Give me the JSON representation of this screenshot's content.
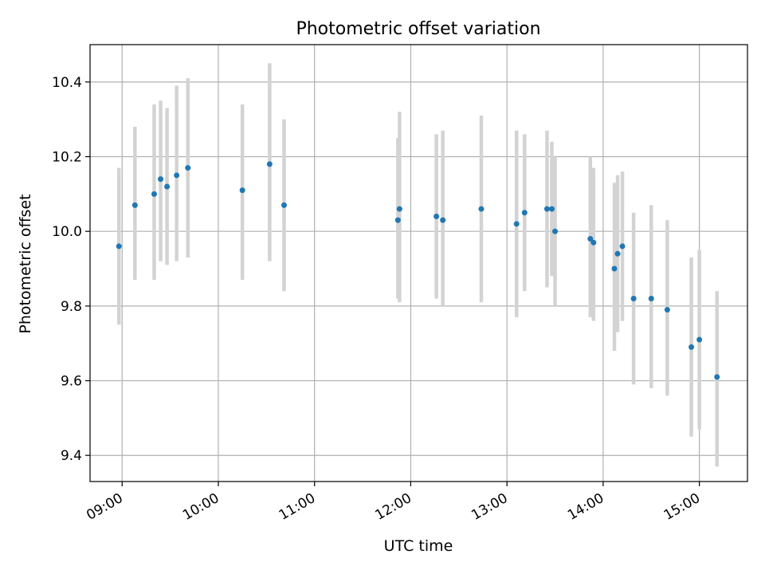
{
  "chart_data": {
    "type": "scatter",
    "title": "Photometric offset variation",
    "xlabel": "UTC time",
    "ylabel": "Photometric offset",
    "xlim": [
      "08:40",
      "15:30"
    ],
    "ylim": [
      9.33,
      10.5
    ],
    "xticks": [
      "09:00",
      "10:00",
      "11:00",
      "12:00",
      "13:00",
      "14:00",
      "15:00"
    ],
    "yticks": [
      "9.4",
      "9.6",
      "9.8",
      "10.0",
      "10.2",
      "10.4"
    ],
    "grid": true,
    "colors": {
      "point": "#1f77b4",
      "errorbar": "#d3d3d3",
      "grid": "#b0b0b0"
    },
    "series": [
      {
        "points": [
          {
            "x": "08:58",
            "y": 9.96,
            "lo": 9.75,
            "hi": 10.17
          },
          {
            "x": "09:08",
            "y": 10.07,
            "lo": 9.87,
            "hi": 10.28
          },
          {
            "x": "09:20",
            "y": 10.1,
            "lo": 9.87,
            "hi": 10.34
          },
          {
            "x": "09:24",
            "y": 10.14,
            "lo": 9.92,
            "hi": 10.35
          },
          {
            "x": "09:28",
            "y": 10.12,
            "lo": 9.91,
            "hi": 10.33
          },
          {
            "x": "09:34",
            "y": 10.15,
            "lo": 9.92,
            "hi": 10.39
          },
          {
            "x": "09:41",
            "y": 10.17,
            "lo": 9.93,
            "hi": 10.41
          },
          {
            "x": "10:15",
            "y": 10.11,
            "lo": 9.87,
            "hi": 10.34
          },
          {
            "x": "10:32",
            "y": 10.18,
            "lo": 9.92,
            "hi": 10.45
          },
          {
            "x": "10:41",
            "y": 10.07,
            "lo": 9.84,
            "hi": 10.3
          },
          {
            "x": "11:52",
            "y": 10.03,
            "lo": 9.82,
            "hi": 10.25
          },
          {
            "x": "11:53",
            "y": 10.06,
            "lo": 9.81,
            "hi": 10.32
          },
          {
            "x": "12:16",
            "y": 10.04,
            "lo": 9.82,
            "hi": 10.26
          },
          {
            "x": "12:20",
            "y": 10.03,
            "lo": 9.8,
            "hi": 10.27
          },
          {
            "x": "12:44",
            "y": 10.06,
            "lo": 9.81,
            "hi": 10.31
          },
          {
            "x": "13:06",
            "y": 10.02,
            "lo": 9.77,
            "hi": 10.27
          },
          {
            "x": "13:11",
            "y": 10.05,
            "lo": 9.84,
            "hi": 10.26
          },
          {
            "x": "13:25",
            "y": 10.06,
            "lo": 9.85,
            "hi": 10.27
          },
          {
            "x": "13:28",
            "y": 10.06,
            "lo": 9.88,
            "hi": 10.24
          },
          {
            "x": "13:30",
            "y": 10.0,
            "lo": 9.8,
            "hi": 10.2
          },
          {
            "x": "13:52",
            "y": 9.98,
            "lo": 9.77,
            "hi": 10.2
          },
          {
            "x": "13:54",
            "y": 9.97,
            "lo": 9.76,
            "hi": 10.17
          },
          {
            "x": "14:07",
            "y": 9.9,
            "lo": 9.68,
            "hi": 10.13
          },
          {
            "x": "14:09",
            "y": 9.94,
            "lo": 9.73,
            "hi": 10.15
          },
          {
            "x": "14:12",
            "y": 9.96,
            "lo": 9.76,
            "hi": 10.16
          },
          {
            "x": "14:19",
            "y": 9.82,
            "lo": 9.59,
            "hi": 10.05
          },
          {
            "x": "14:30",
            "y": 9.82,
            "lo": 9.58,
            "hi": 10.07
          },
          {
            "x": "14:40",
            "y": 9.79,
            "lo": 9.56,
            "hi": 10.03
          },
          {
            "x": "14:55",
            "y": 9.69,
            "lo": 9.45,
            "hi": 9.93
          },
          {
            "x": "15:00",
            "y": 9.71,
            "lo": 9.47,
            "hi": 9.95
          },
          {
            "x": "15:11",
            "y": 9.61,
            "lo": 9.37,
            "hi": 9.84
          }
        ]
      }
    ]
  }
}
